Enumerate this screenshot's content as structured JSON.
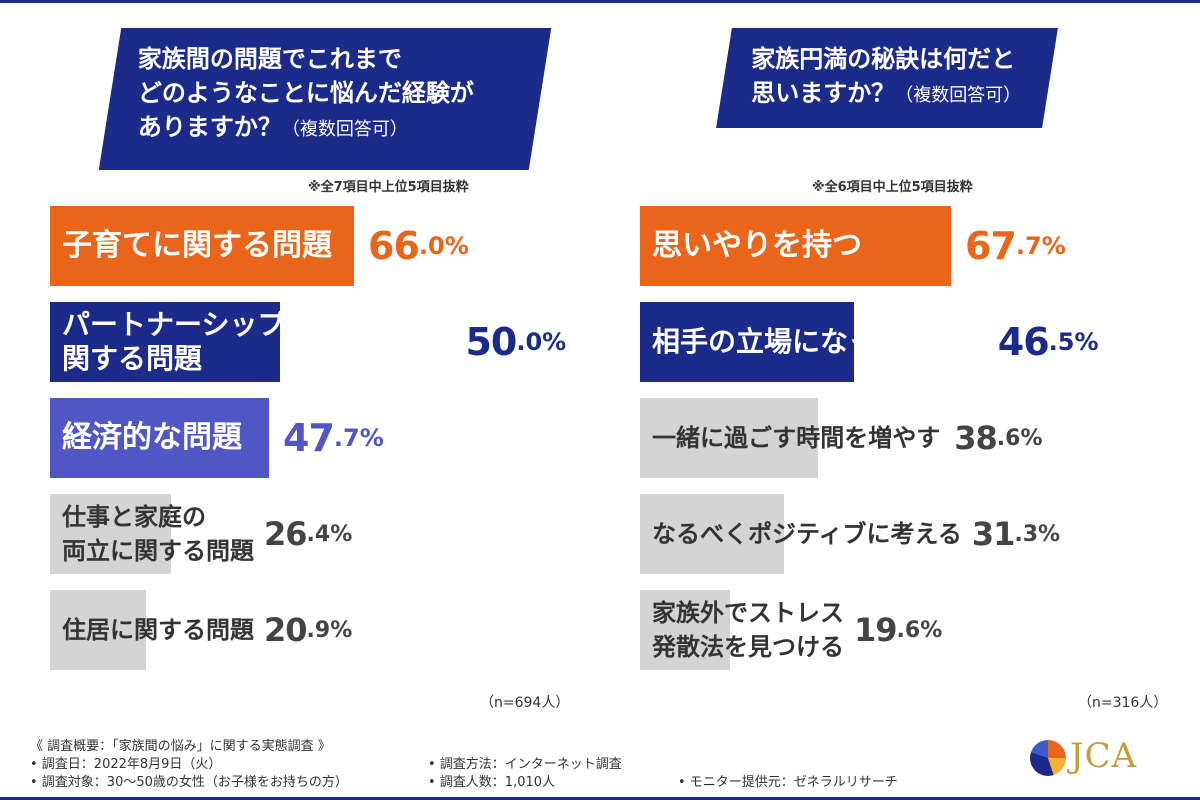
{
  "chart_data": [
    {
      "type": "bar",
      "title": "家族間の問題でこれまでどのようなことに悩んだ経験がありますか？（複数回答可）",
      "title_lines": [
        "家族間の問題でこれまで",
        "どのようなことに悩んだ経験が",
        "ありますか？"
      ],
      "title_paren": "（複数回答可）",
      "note": "※全7項目中上位5項目抜粋",
      "orientation": "horizontal",
      "categories": [
        "子育てに関する問題",
        "パートナーシップ（夫婦間）に関する問題",
        "経済的な問題",
        "仕事と家庭の両立に関する問題",
        "住居に関する問題"
      ],
      "category_lines": [
        [
          "子育てに関する問題"
        ],
        [
          "パートナーシップ（夫婦間）に",
          "関する問題"
        ],
        [
          "経済的な問題"
        ],
        [
          "仕事と家庭の",
          "両立に関する問題"
        ],
        [
          "住居に関する問題"
        ]
      ],
      "values": [
        66.0,
        50.0,
        47.7,
        26.4,
        20.9
      ],
      "value_labels": [
        "66.0%",
        "50.0%",
        "47.7%",
        "26.4%",
        "20.9%"
      ],
      "value_parts": [
        [
          "66",
          ".0",
          "%"
        ],
        [
          "50",
          ".0",
          "%"
        ],
        [
          "47",
          ".7",
          "%"
        ],
        [
          "26",
          ".4",
          "%"
        ],
        [
          "20",
          ".9",
          "%"
        ]
      ],
      "colors": [
        "#e8651a",
        "#1c2a8a",
        "#5056c4",
        "#d4d4d4",
        "#d4d4d4"
      ],
      "text_colors": [
        "#ffffff",
        "#ffffff",
        "#ffffff",
        "#333333",
        "#333333"
      ],
      "value_colors": [
        "#e8651a",
        "#1c2a8a",
        "#5056c4",
        "#444444",
        "#444444"
      ],
      "n": "（n=694人）"
    },
    {
      "type": "bar",
      "title": "家族円満の秘訣は何だと思いますか？（複数回答可）",
      "title_lines": [
        "家族円満の秘訣は何だと",
        "思いますか？"
      ],
      "title_paren": "（複数回答可）",
      "note": "※全6項目中上位5項目抜粋",
      "orientation": "horizontal",
      "categories": [
        "思いやりを持つ",
        "相手の立場になって考える",
        "一緒に過ごす時間を増やす",
        "なるべくポジティブに考える",
        "家族外でストレス発散法を見つける"
      ],
      "category_lines": [
        [
          "思いやりを持つ"
        ],
        [
          "相手の立場になって考える"
        ],
        [
          "一緒に過ごす時間を増やす"
        ],
        [
          "なるべくポジティブに考える"
        ],
        [
          "家族外でストレス",
          "発散法を見つける"
        ]
      ],
      "values": [
        67.7,
        46.5,
        38.6,
        31.3,
        19.6
      ],
      "value_labels": [
        "67.7%",
        "46.5%",
        "38.6%",
        "31.3%",
        "19.6%"
      ],
      "value_parts": [
        [
          "67",
          ".7",
          "%"
        ],
        [
          "46",
          ".5",
          "%"
        ],
        [
          "38",
          ".6",
          "%"
        ],
        [
          "31",
          ".3",
          "%"
        ],
        [
          "19",
          ".6",
          "%"
        ]
      ],
      "colors": [
        "#e8651a",
        "#1c2a8a",
        "#d4d4d4",
        "#d4d4d4",
        "#d4d4d4"
      ],
      "text_colors": [
        "#ffffff",
        "#ffffff",
        "#333333",
        "#333333",
        "#333333"
      ],
      "value_colors": [
        "#e8651a",
        "#1c2a8a",
        "#444444",
        "#444444",
        "#444444"
      ],
      "n": "（n=316人）"
    }
  ],
  "footer": {
    "summary": "《 調査概要：「家族間の悩み」に関する実態調査 》",
    "date": "• 調査日：2022年8月9日（火）",
    "target": "• 調査対象：30～50歳の女性（お子様をお持ちの方）",
    "method": "• 調査方法：インターネット調査",
    "count": "• 調査人数：1,010人",
    "monitor": "• モニター提供元：ゼネラルリサーチ"
  },
  "logo": {
    "text": "JCA",
    "icon": "jca-logo-icon"
  }
}
